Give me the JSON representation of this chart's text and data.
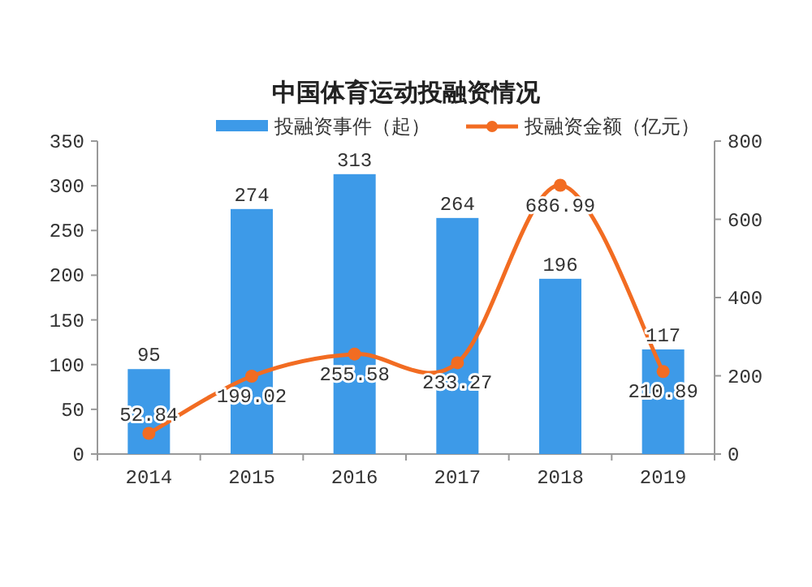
{
  "chart_data": {
    "type": "bar",
    "title": "中国体育运动投融资情况",
    "categories": [
      "2014",
      "2015",
      "2016",
      "2017",
      "2018",
      "2019"
    ],
    "series": [
      {
        "name": "投融资事件（起）",
        "color": "#3d9ae8",
        "values": [
          95,
          274,
          313,
          264,
          196,
          117
        ]
      },
      {
        "name": "投融资金额（亿元）",
        "type": "line",
        "axis": "y2",
        "color": "#f26c22",
        "marker": "circle",
        "values": [
          52.84,
          199.02,
          255.58,
          233.27,
          686.99,
          210.89
        ]
      }
    ],
    "ylim": [
      0,
      350
    ],
    "yticks": [
      0,
      50,
      100,
      150,
      200,
      250,
      300,
      350
    ],
    "y2lim": [
      0,
      800
    ],
    "y2ticks": [
      0,
      200,
      400,
      600,
      800
    ],
    "data_labels": true,
    "legend": "top",
    "grid": false
  }
}
